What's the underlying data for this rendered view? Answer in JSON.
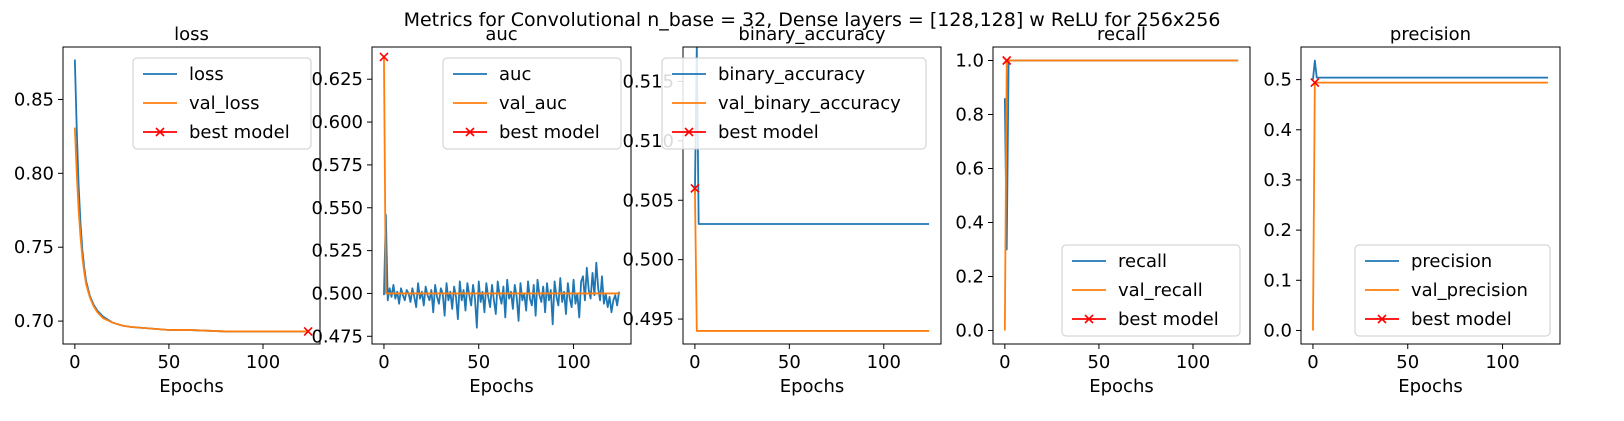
{
  "suptitle": "Metrics for Convolutional n_base = 32, Dense layers = [128,128] w ReLU for 256x256",
  "colors": {
    "train": "#1f77b4",
    "val": "#ff7f0e",
    "best": "#ff0000",
    "axis": "#000000"
  },
  "chart_data": [
    {
      "type": "line",
      "title": "loss",
      "xlabel": "Epochs",
      "ylabel": "",
      "xlim": [
        -6.3,
        130.3
      ],
      "ylim": [
        0.6845,
        0.8855
      ],
      "xticks": [
        0,
        50,
        100
      ],
      "yticks": [
        0.7,
        0.75,
        0.8,
        0.85
      ],
      "ytick_labels": [
        "0.70",
        "0.75",
        "0.80",
        "0.85"
      ],
      "legend": {
        "position": "upper-right",
        "entries": [
          "loss",
          "val_loss",
          "best model"
        ]
      },
      "series": [
        {
          "name": "loss",
          "color_key": "train",
          "x": [
            0,
            1,
            2,
            3,
            4,
            5,
            6,
            8,
            10,
            12,
            15,
            20,
            25,
            30,
            40,
            50,
            60,
            80,
            100,
            124
          ],
          "y": [
            0.877,
            0.83,
            0.792,
            0.766,
            0.748,
            0.736,
            0.727,
            0.717,
            0.711,
            0.707,
            0.703,
            0.699,
            0.697,
            0.696,
            0.695,
            0.694,
            0.694,
            0.693,
            0.693,
            0.693
          ]
        },
        {
          "name": "val_loss",
          "color_key": "val",
          "x": [
            0,
            1,
            2,
            3,
            4,
            5,
            6,
            8,
            10,
            12,
            15,
            20,
            25,
            30,
            40,
            50,
            60,
            80,
            100,
            124
          ],
          "y": [
            0.831,
            0.8,
            0.775,
            0.757,
            0.743,
            0.733,
            0.725,
            0.716,
            0.71,
            0.706,
            0.702,
            0.699,
            0.697,
            0.696,
            0.695,
            0.694,
            0.694,
            0.693,
            0.693,
            0.693
          ]
        }
      ],
      "best": {
        "name": "best model",
        "x": 124,
        "y": 0.693
      }
    },
    {
      "type": "line",
      "title": "auc",
      "xlabel": "Epochs",
      "ylabel": "",
      "xlim": [
        -6.3,
        130.3
      ],
      "ylim": [
        0.4705,
        0.6438
      ],
      "xticks": [
        0,
        50,
        100
      ],
      "yticks": [
        0.475,
        0.5,
        0.525,
        0.55,
        0.575,
        0.6,
        0.625
      ],
      "ytick_labels": [
        "0.475",
        "0.500",
        "0.525",
        "0.550",
        "0.575",
        "0.600",
        "0.625"
      ],
      "legend": {
        "position": "upper-right",
        "entries": [
          "auc",
          "val_auc",
          "best model"
        ]
      },
      "series": [
        {
          "name": "auc",
          "color_key": "train",
          "x": [
            0,
            1,
            2,
            3,
            4,
            5,
            6,
            7,
            8,
            9,
            10,
            11,
            12,
            13,
            14,
            15,
            16,
            17,
            18,
            19,
            20,
            21,
            22,
            23,
            24,
            25,
            26,
            27,
            28,
            29,
            30,
            31,
            32,
            33,
            34,
            35,
            36,
            37,
            38,
            39,
            40,
            41,
            42,
            43,
            44,
            45,
            46,
            47,
            48,
            49,
            50,
            51,
            52,
            53,
            54,
            55,
            56,
            57,
            58,
            59,
            60,
            61,
            62,
            63,
            64,
            65,
            66,
            67,
            68,
            69,
            70,
            71,
            72,
            73,
            74,
            75,
            76,
            77,
            78,
            79,
            80,
            81,
            82,
            83,
            84,
            85,
            86,
            87,
            88,
            89,
            90,
            91,
            92,
            93,
            94,
            95,
            96,
            97,
            98,
            99,
            100,
            101,
            102,
            103,
            104,
            105,
            106,
            107,
            108,
            109,
            110,
            111,
            112,
            113,
            114,
            115,
            116,
            117,
            118,
            119,
            120,
            121,
            122,
            123,
            124
          ],
          "y": [
            0.499,
            0.546,
            0.496,
            0.503,
            0.498,
            0.505,
            0.497,
            0.501,
            0.494,
            0.503,
            0.499,
            0.496,
            0.502,
            0.5,
            0.495,
            0.503,
            0.498,
            0.492,
            0.506,
            0.497,
            0.501,
            0.493,
            0.504,
            0.499,
            0.496,
            0.502,
            0.489,
            0.505,
            0.498,
            0.494,
            0.503,
            0.5,
            0.487,
            0.506,
            0.496,
            0.501,
            0.491,
            0.504,
            0.498,
            0.485,
            0.507,
            0.496,
            0.502,
            0.49,
            0.506,
            0.499,
            0.493,
            0.505,
            0.497,
            0.48,
            0.507,
            0.495,
            0.501,
            0.489,
            0.506,
            0.498,
            0.492,
            0.505,
            0.496,
            0.488,
            0.507,
            0.499,
            0.494,
            0.504,
            0.486,
            0.508,
            0.497,
            0.501,
            0.491,
            0.505,
            0.498,
            0.484,
            0.506,
            0.496,
            0.5,
            0.49,
            0.507,
            0.497,
            0.493,
            0.505,
            0.487,
            0.508,
            0.499,
            0.495,
            0.504,
            0.489,
            0.506,
            0.496,
            0.502,
            0.482,
            0.507,
            0.498,
            0.493,
            0.509,
            0.495,
            0.501,
            0.488,
            0.506,
            0.497,
            0.492,
            0.508,
            0.494,
            0.5,
            0.486,
            0.507,
            0.51,
            0.496,
            0.515,
            0.502,
            0.497,
            0.512,
            0.499,
            0.518,
            0.503,
            0.496,
            0.51,
            0.494,
            0.5,
            0.492,
            0.498,
            0.489,
            0.496,
            0.499,
            0.493,
            0.501
          ]
        },
        {
          "name": "val_auc",
          "color_key": "val",
          "x": [
            0,
            1,
            2,
            124
          ],
          "y": [
            0.638,
            0.5,
            0.5,
            0.5
          ]
        }
      ],
      "best": {
        "name": "best model",
        "x": 0,
        "y": 0.638
      }
    },
    {
      "type": "line",
      "title": "binary_accuracy",
      "xlabel": "Epochs",
      "ylabel": "",
      "xlim": [
        -6.3,
        130.3
      ],
      "ylim": [
        0.4929,
        0.5179
      ],
      "xticks": [
        0,
        50,
        100
      ],
      "yticks": [
        0.495,
        0.5,
        0.505,
        0.51,
        0.515
      ],
      "ytick_labels": [
        "0.495",
        "0.500",
        "0.505",
        "0.510",
        "0.515"
      ],
      "legend": {
        "position": "upper-left",
        "entries": [
          "binary_accuracy",
          "val_binary_accuracy",
          "best model"
        ]
      },
      "series": [
        {
          "name": "binary_accuracy",
          "color_key": "train",
          "x": [
            0,
            1,
            2,
            124
          ],
          "y": [
            0.5055,
            0.518,
            0.503,
            0.503
          ]
        },
        {
          "name": "val_binary_accuracy",
          "color_key": "val",
          "x": [
            0,
            1,
            124
          ],
          "y": [
            0.506,
            0.494,
            0.494
          ]
        }
      ],
      "best": {
        "name": "best model",
        "x": 0,
        "y": 0.506
      }
    },
    {
      "type": "line",
      "title": "recall",
      "xlabel": "Epochs",
      "ylabel": "",
      "xlim": [
        -6.3,
        130.3
      ],
      "ylim": [
        -0.05,
        1.05
      ],
      "xticks": [
        0,
        50,
        100
      ],
      "yticks": [
        0.0,
        0.2,
        0.4,
        0.6,
        0.8,
        1.0
      ],
      "ytick_labels": [
        "0.0",
        "0.2",
        "0.4",
        "0.6",
        "0.8",
        "1.0"
      ],
      "legend": {
        "position": "lower-right",
        "entries": [
          "recall",
          "val_recall",
          "best model"
        ]
      },
      "series": [
        {
          "name": "recall",
          "color_key": "train",
          "x": [
            0,
            1,
            2,
            124
          ],
          "y": [
            0.86,
            0.3,
            1.0,
            1.0
          ]
        },
        {
          "name": "val_recall",
          "color_key": "val",
          "x": [
            0,
            1,
            124
          ],
          "y": [
            0.0,
            1.0,
            1.0
          ]
        }
      ],
      "best": {
        "name": "best model",
        "x": 1,
        "y": 1.0
      }
    },
    {
      "type": "line",
      "title": "precision",
      "xlabel": "Epochs",
      "ylabel": "",
      "xlim": [
        -6.3,
        130.3
      ],
      "ylim": [
        -0.027,
        0.565
      ],
      "xticks": [
        0,
        50,
        100
      ],
      "yticks": [
        0.0,
        0.1,
        0.2,
        0.3,
        0.4,
        0.5
      ],
      "ytick_labels": [
        "0.0",
        "0.1",
        "0.2",
        "0.3",
        "0.4",
        "0.5"
      ],
      "legend": {
        "position": "lower-right",
        "entries": [
          "precision",
          "val_precision",
          "best model"
        ]
      },
      "series": [
        {
          "name": "precision",
          "color_key": "train",
          "x": [
            0,
            1,
            2,
            124
          ],
          "y": [
            0.5,
            0.538,
            0.504,
            0.504
          ]
        },
        {
          "name": "val_precision",
          "color_key": "val",
          "x": [
            0,
            1,
            124
          ],
          "y": [
            0.0,
            0.494,
            0.494
          ]
        }
      ],
      "best": {
        "name": "best model",
        "x": 1,
        "y": 0.494
      }
    }
  ]
}
